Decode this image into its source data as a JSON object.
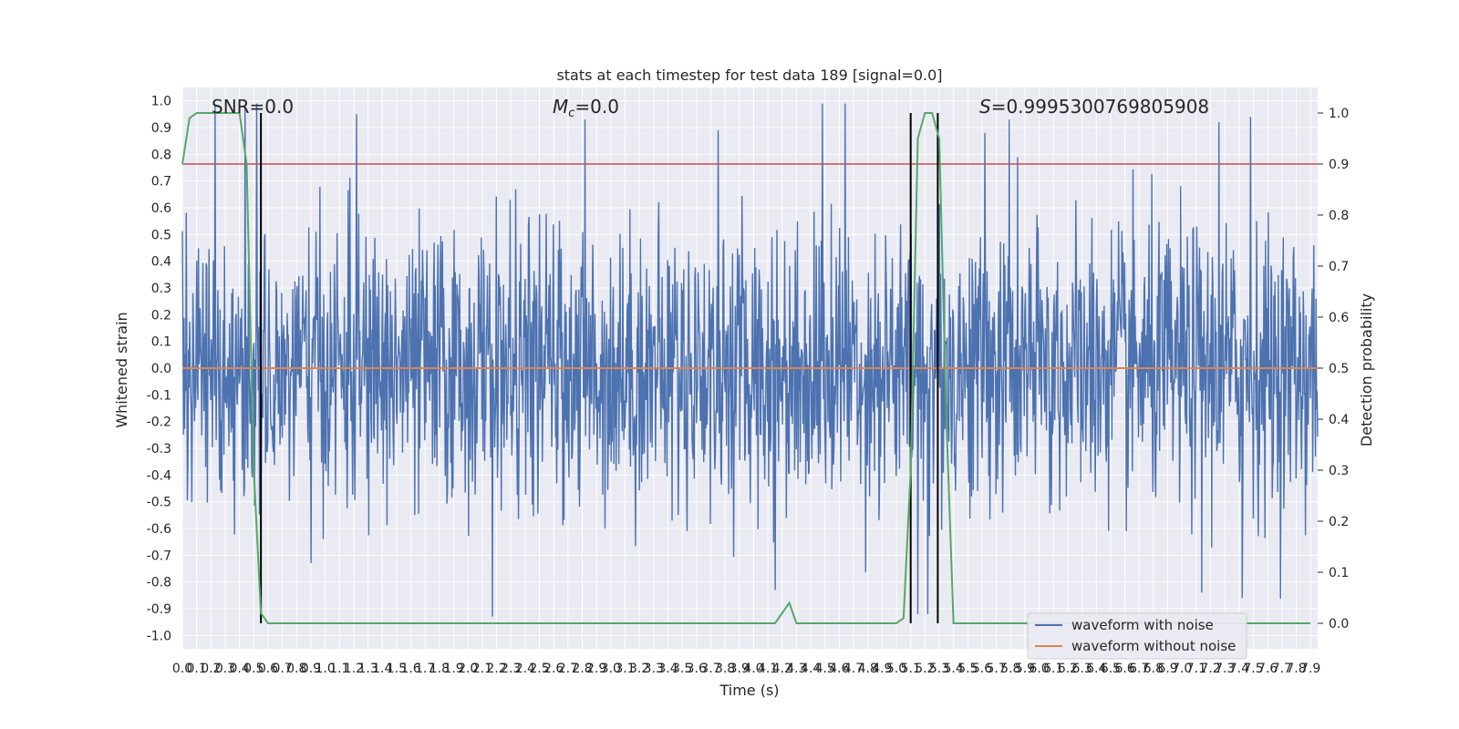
{
  "chart_data": {
    "type": "line",
    "title": "stats at each timestep for test data 189 [signal=0.0]",
    "xlabel": "Time (s)",
    "ylabel": "Whitened strain",
    "y2label": "Detection probability",
    "xlim": [
      0.0,
      7.95
    ],
    "ylim": [
      -1.05,
      1.05
    ],
    "y2lim": [
      -0.05,
      1.05
    ],
    "x_ticks": [
      "0.0",
      "0.1",
      "0.2",
      "0.3",
      "0.4",
      "0.5",
      "0.6",
      "0.7",
      "0.8",
      "0.9",
      "1.0",
      "1.1",
      "1.2",
      "1.3",
      "1.4",
      "1.5",
      "1.6",
      "1.7",
      "1.8",
      "1.9",
      "2.0",
      "2.1",
      "2.2",
      "2.3",
      "2.4",
      "2.5",
      "2.6",
      "2.7",
      "2.8",
      "2.9",
      "3.0",
      "3.1",
      "3.2",
      "3.3",
      "3.4",
      "3.5",
      "3.6",
      "3.7",
      "3.8",
      "3.9",
      "4.0",
      "4.1",
      "4.2",
      "4.3",
      "4.4",
      "4.5",
      "4.6",
      "4.7",
      "4.8",
      "4.9",
      "5.0",
      "5.1",
      "5.2",
      "5.3",
      "5.4",
      "5.5",
      "5.6",
      "5.7",
      "5.8",
      "5.9",
      "6.0",
      "6.1",
      "6.2",
      "6.3",
      "6.4",
      "6.5",
      "6.6",
      "6.7",
      "6.8",
      "6.9",
      "7.0",
      "7.1",
      "7.2",
      "7.3",
      "7.4",
      "7.5",
      "7.6",
      "7.7",
      "7.8",
      "7.9"
    ],
    "y_ticks": [
      "-1.0",
      "-0.9",
      "-0.8",
      "-0.7",
      "-0.6",
      "-0.5",
      "-0.4",
      "-0.3",
      "-0.2",
      "-0.1",
      "0.0",
      "0.1",
      "0.2",
      "0.3",
      "0.4",
      "0.5",
      "0.6",
      "0.7",
      "0.8",
      "0.9",
      "1.0"
    ],
    "y2_ticks": [
      "0.0",
      "0.1",
      "0.2",
      "0.3",
      "0.4",
      "0.5",
      "0.6",
      "0.7",
      "0.8",
      "0.9",
      "1.0"
    ],
    "grid": true,
    "legend_position": "lower-right",
    "annotations": {
      "snr": "SNR=0.0",
      "mc": "=0.0",
      "mc_symbol": "M",
      "mc_sub": "c",
      "s": "=0.9995300769805908",
      "s_symbol": "S"
    },
    "series": [
      {
        "name": "waveform with noise",
        "color": "#4c72b0",
        "noise_std": 0.26,
        "samples": 2048,
        "spike_peaks": [
          {
            "x": 0.23,
            "y": 0.98
          },
          {
            "x": 0.44,
            "y": 0.98
          },
          {
            "x": 0.52,
            "y": 0.99
          },
          {
            "x": 1.22,
            "y": 0.95
          },
          {
            "x": 2.82,
            "y": 0.93
          },
          {
            "x": 3.75,
            "y": 0.89
          },
          {
            "x": 4.48,
            "y": 0.99
          },
          {
            "x": 4.64,
            "y": 0.99
          },
          {
            "x": 5.62,
            "y": 0.88
          },
          {
            "x": 5.79,
            "y": 0.93
          },
          {
            "x": 7.26,
            "y": 0.92
          },
          {
            "x": 7.48,
            "y": 0.94
          },
          {
            "x": 2.17,
            "y": -0.93
          },
          {
            "x": 5.15,
            "y": -0.92
          },
          {
            "x": 5.22,
            "y": -0.92
          },
          {
            "x": 7.42,
            "y": -0.86
          },
          {
            "x": 4.15,
            "y": -0.83
          },
          {
            "x": 7.14,
            "y": -0.84
          }
        ]
      },
      {
        "name": "waveform without noise",
        "color": "#dd8452",
        "x": [
          0.0,
          7.95
        ],
        "y": [
          0.0,
          0.0
        ]
      },
      {
        "name": "detection probability",
        "axis": "right",
        "color": "#55a868",
        "x": [
          0.0,
          0.05,
          0.1,
          0.15,
          0.2,
          0.25,
          0.3,
          0.35,
          0.4,
          0.45,
          0.5,
          0.55,
          0.6,
          0.65,
          0.7,
          0.75,
          4.1,
          4.15,
          4.2,
          4.25,
          4.3,
          4.35,
          4.4,
          5.0,
          5.05,
          5.1,
          5.15,
          5.2,
          5.25,
          5.3,
          5.35,
          5.4,
          5.45,
          7.9
        ],
        "y": [
          0.9,
          0.99,
          1.0,
          1.0,
          1.0,
          1.0,
          1.0,
          1.0,
          1.0,
          0.9,
          0.3,
          0.02,
          0.0,
          0.0,
          0.0,
          0.0,
          0.0,
          0.0,
          0.02,
          0.04,
          0.0,
          0.0,
          0.0,
          0.0,
          0.01,
          0.3,
          0.95,
          1.0,
          1.0,
          0.95,
          0.4,
          0.0,
          0.0,
          0.0
        ]
      }
    ],
    "hlines": [
      {
        "axis": "right",
        "y": 0.9,
        "color": "#c44e52"
      }
    ],
    "vlines": [
      {
        "x": 0.55,
        "color": "#000000"
      },
      {
        "x": 5.1,
        "color": "#000000"
      },
      {
        "x": 5.29,
        "color": "#000000"
      }
    ]
  }
}
